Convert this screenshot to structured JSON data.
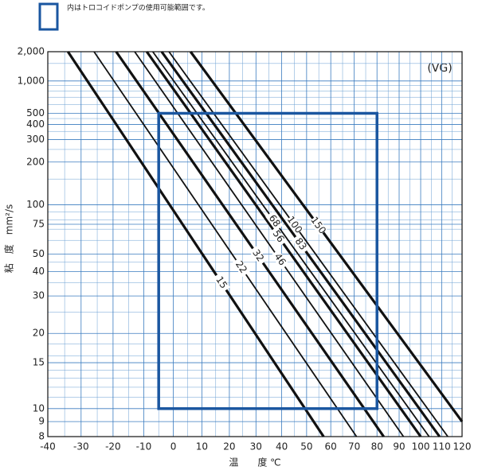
{
  "chart_data": {
    "type": "line",
    "legend_text": "内はトロコイドポンプの使用可能範囲です。",
    "annotation": "(VG)",
    "xlabel": "温　　度 ℃",
    "ylabel": "粘　度　mm²/s",
    "xscale": "log-kelvin",
    "yscale": "loglog",
    "xlim": [
      -40,
      120
    ],
    "ylim": [
      8,
      2000
    ],
    "xticks": [
      -40,
      -30,
      -20,
      -10,
      0,
      10,
      20,
      30,
      40,
      50,
      60,
      70,
      80,
      90,
      100,
      110,
      120
    ],
    "minor_xticks": [
      -35,
      -25,
      -15,
      -5,
      5,
      15,
      25,
      35,
      45,
      55,
      65,
      75,
      85,
      95,
      105,
      115
    ],
    "yticks": [
      {
        "value": 2000,
        "label": "2,000"
      },
      {
        "value": 1000,
        "label": "1,000"
      },
      500,
      400,
      300,
      200,
      100,
      75,
      50,
      40,
      30,
      20,
      15,
      10,
      9,
      8
    ],
    "minor_yticks": [
      1500,
      900,
      800,
      700,
      600,
      450,
      350,
      250,
      150,
      90,
      80,
      70,
      60,
      45,
      35,
      25,
      18,
      16,
      14,
      13,
      12,
      11
    ],
    "grid": true,
    "line_color": "#111111",
    "series": [
      {
        "name": "15",
        "bold": true,
        "x": [
          -34,
          57
        ],
        "values": [
          2000,
          8
        ]
      },
      {
        "name": "22",
        "bold": false,
        "x": [
          -26,
          71
        ],
        "values": [
          2000,
          8
        ]
      },
      {
        "name": "32",
        "bold": true,
        "x": [
          -19,
          83
        ],
        "values": [
          2000,
          8
        ]
      },
      {
        "name": "46",
        "bold": false,
        "x": [
          -13,
          92
        ],
        "values": [
          2000,
          8
        ]
      },
      {
        "name": "56",
        "bold": true,
        "x": [
          -9,
          100
        ],
        "values": [
          2000,
          8
        ]
      },
      {
        "name": "68",
        "bold": false,
        "x": [
          -7,
          104
        ],
        "values": [
          2000,
          8
        ]
      },
      {
        "name": "83",
        "bold": true,
        "x": [
          -4,
          109
        ],
        "values": [
          2000,
          8
        ]
      },
      {
        "name": "100",
        "bold": false,
        "x": [
          -1.5,
          113
        ],
        "values": [
          2000,
          8
        ]
      },
      {
        "name": "150",
        "bold": true,
        "x": [
          6,
          120
        ],
        "values": [
          2000,
          9
        ]
      }
    ],
    "range_box": {
      "x": [
        -5,
        80
      ],
      "y": [
        10,
        500
      ],
      "color": "#1a56a0"
    }
  }
}
